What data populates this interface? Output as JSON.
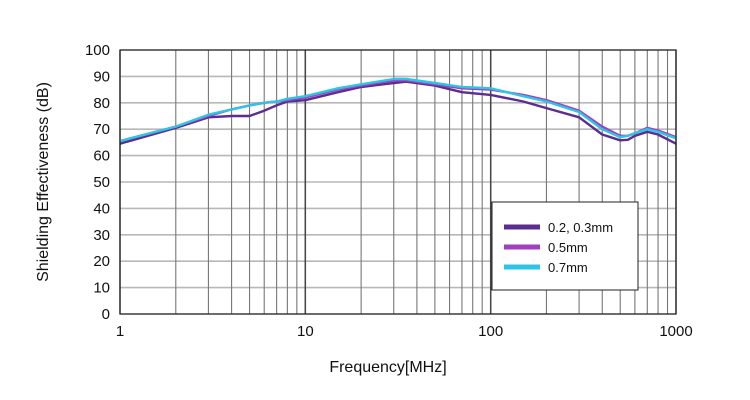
{
  "chart_data": {
    "type": "line",
    "xlabel": "Frequency[MHz]",
    "ylabel": "Shielding Effectiveness (dB)",
    "x_scale": "log",
    "xlim": [
      1,
      1000
    ],
    "ylim": [
      0,
      100
    ],
    "grid": true,
    "legend_position": "bottom-right",
    "x_ticks": [
      "1",
      "10",
      "100",
      "1000"
    ],
    "y_ticks": [
      "0",
      "10",
      "20",
      "30",
      "40",
      "50",
      "60",
      "70",
      "80",
      "90",
      "100"
    ],
    "series": [
      {
        "name": "0.2, 0.3mm",
        "color": "#5b2d8e",
        "x": [
          1,
          2,
          3,
          4,
          5,
          6,
          7,
          8,
          10,
          15,
          20,
          30,
          35,
          50,
          70,
          100,
          150,
          200,
          300,
          400,
          500,
          550,
          600,
          700,
          800,
          1000
        ],
        "y": [
          64.5,
          70.5,
          74.5,
          75,
          75,
          77,
          79,
          80.5,
          81,
          84,
          86,
          87.5,
          88,
          86.5,
          84,
          83,
          80.5,
          78,
          74.5,
          68,
          65.8,
          66,
          67.5,
          69,
          68,
          64.5
        ]
      },
      {
        "name": "0.5mm",
        "color": "#a23fbf",
        "x": [
          1,
          2,
          3,
          4,
          5,
          6,
          7,
          8,
          10,
          15,
          20,
          30,
          35,
          50,
          70,
          100,
          150,
          200,
          300,
          400,
          500,
          550,
          600,
          700,
          800,
          1000
        ],
        "y": [
          65.5,
          71,
          75,
          77.5,
          79,
          80,
          80.5,
          81,
          82,
          85,
          86.5,
          88.5,
          88.5,
          87,
          85.5,
          85,
          83,
          81,
          77,
          71,
          67.5,
          67.5,
          68.5,
          70.5,
          69.5,
          67
        ]
      },
      {
        "name": "0.7mm",
        "color": "#2ec4e6",
        "x": [
          1,
          2,
          3,
          4,
          5,
          6,
          7,
          8,
          10,
          15,
          20,
          30,
          35,
          50,
          70,
          100,
          150,
          200,
          300,
          400,
          500,
          550,
          600,
          700,
          800,
          1000
        ],
        "y": [
          65.5,
          71,
          75.5,
          77.5,
          79,
          80,
          80.5,
          81.5,
          82.5,
          85.5,
          87,
          89,
          89,
          87.5,
          86,
          85.5,
          82.5,
          80.5,
          76.5,
          70,
          67,
          67.5,
          68.5,
          70,
          69,
          66.5
        ]
      }
    ]
  }
}
